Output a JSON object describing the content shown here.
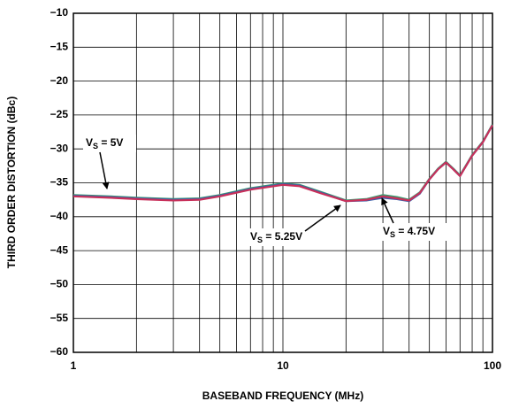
{
  "chart_data": {
    "type": "line",
    "xlabel": "BASEBAND FREQUENCY (MHz)",
    "ylabel": "THIRD ORDER DISTORTION (dBc)",
    "xscale": "log",
    "grid": true,
    "xlim": [
      1,
      100
    ],
    "xticks": [
      1,
      10,
      100
    ],
    "ylim": [
      -60,
      -10
    ],
    "yticks": [
      {
        "value": -10,
        "label": "−10"
      },
      {
        "value": -15,
        "label": "−15"
      },
      {
        "value": -20,
        "label": "−20"
      },
      {
        "value": -25,
        "label": "−25"
      },
      {
        "value": -30,
        "label": "−30"
      },
      {
        "value": -35,
        "label": "−35"
      },
      {
        "value": -40,
        "label": "−40"
      },
      {
        "value": -45,
        "label": "−45"
      },
      {
        "value": -50,
        "label": "−50"
      },
      {
        "value": -55,
        "label": "−55"
      },
      {
        "value": -60,
        "label": "−60"
      }
    ],
    "x": [
      1,
      1.5,
      2,
      3,
      4,
      5,
      7,
      10,
      12,
      15,
      20,
      25,
      30,
      35,
      40,
      45,
      50,
      55,
      60,
      65,
      70,
      80,
      90,
      100
    ],
    "series": [
      {
        "name": "VS = 5V",
        "color": "#3a9a70",
        "values": [
          -36.8,
          -37.0,
          -37.2,
          -37.4,
          -37.3,
          -36.8,
          -35.8,
          -35.1,
          -35.3,
          -36.3,
          -37.6,
          -37.4,
          -36.8,
          -37.1,
          -37.5,
          -36.4,
          -34.4,
          -32.9,
          -31.9,
          -32.9,
          -33.9,
          -30.9,
          -28.9,
          -26.4
        ]
      },
      {
        "name": "VS = 4.75V",
        "color": "#3a5fa8",
        "values": [
          -36.9,
          -37.1,
          -37.3,
          -37.5,
          -37.4,
          -36.9,
          -35.9,
          -35.2,
          -35.4,
          -36.4,
          -37.7,
          -37.6,
          -37.2,
          -37.4,
          -37.7,
          -36.6,
          -34.5,
          -33.0,
          -32.0,
          -33.0,
          -34.0,
          -31.0,
          -29.0,
          -26.5
        ]
      },
      {
        "name": "VS = 5.25V",
        "color": "#c8305a",
        "values": [
          -37.0,
          -37.2,
          -37.4,
          -37.6,
          -37.5,
          -37.0,
          -36.0,
          -35.3,
          -35.5,
          -36.5,
          -37.7,
          -37.5,
          -37.0,
          -37.3,
          -37.6,
          -36.5,
          -34.5,
          -33.0,
          -32.0,
          -33.0,
          -34.0,
          -31.0,
          -29.0,
          -26.5
        ]
      }
    ],
    "annotations": [
      {
        "prefix": "V",
        "subscript": "S",
        "suffix": " = 5V"
      },
      {
        "prefix": "V",
        "subscript": "S",
        "suffix": " = 5.25V"
      },
      {
        "prefix": "V",
        "subscript": "S",
        "suffix": " = 4.75V"
      }
    ]
  }
}
